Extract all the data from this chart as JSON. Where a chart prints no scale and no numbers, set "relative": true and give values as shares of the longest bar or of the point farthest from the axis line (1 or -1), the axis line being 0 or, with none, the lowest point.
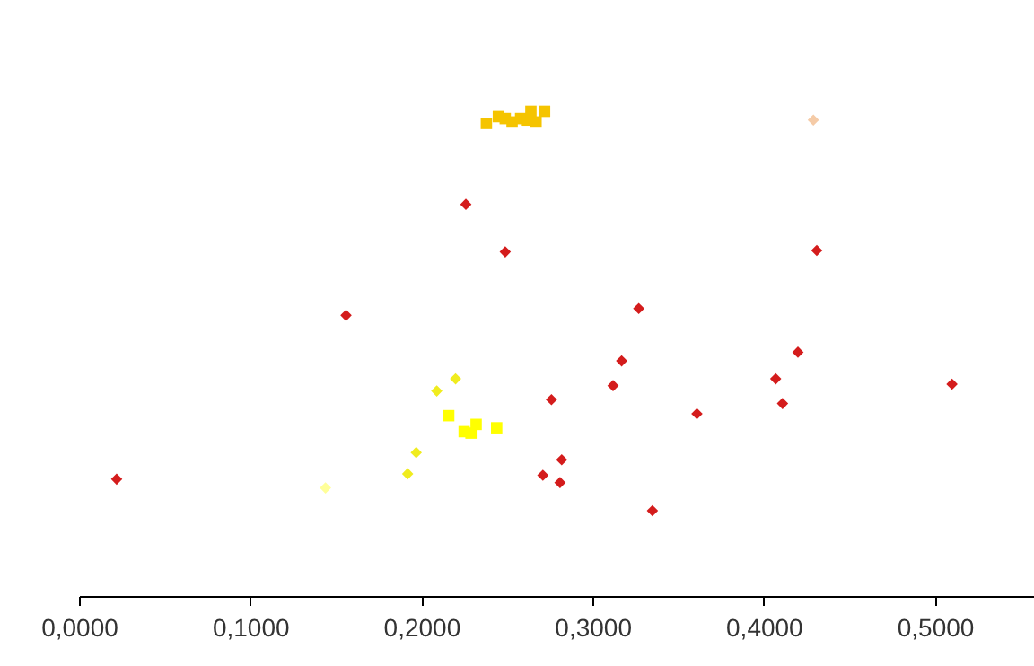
{
  "chart_data": {
    "type": "scatter",
    "relative": true,
    "grid": false,
    "tick_labels": "x",
    "xlim": [
      0,
      0.56
    ],
    "xticks": [
      {
        "value": 0,
        "label": "0,0000"
      },
      {
        "value": 0.1,
        "label": "0,1000"
      },
      {
        "value": 0.2,
        "label": "0,2000"
      },
      {
        "value": 0.3,
        "label": "0,3000"
      },
      {
        "value": 0.4,
        "label": "0,4000"
      },
      {
        "value": 0.5,
        "label": "0,5000"
      }
    ],
    "series": [
      {
        "color": "#d41c1c",
        "marker": "diamond",
        "x": [
          0.022,
          0.156,
          0.226,
          0.249,
          0.327,
          0.431,
          0.317,
          0.312,
          0.276,
          0.282,
          0.271,
          0.281,
          0.335,
          0.361,
          0.407,
          0.42,
          0.411,
          0.51
        ],
        "values": [
          0.241,
          0.579,
          0.808,
          0.71,
          0.593,
          0.713,
          0.485,
          0.434,
          0.405,
          0.281,
          0.249,
          0.234,
          0.176,
          0.376,
          0.448,
          0.503,
          0.397,
          0.437
        ]
      },
      {
        "color": "#f5c400",
        "marker": "square",
        "x": [
          0.238,
          0.245,
          0.249,
          0.253,
          0.258,
          0.262,
          0.264,
          0.267,
          0.272
        ],
        "values": [
          0.975,
          0.989,
          0.985,
          0.978,
          0.985,
          0.982,
          1.0,
          0.978,
          1.0
        ]
      },
      {
        "color": "#f5cba7",
        "marker": "diamond",
        "x": [
          0.429
        ],
        "values": [
          0.982
        ]
      },
      {
        "color": "#ffff00",
        "marker": "square",
        "x": [
          0.216,
          0.225,
          0.229,
          0.232,
          0.244
        ],
        "values": [
          0.372,
          0.339,
          0.336,
          0.354,
          0.347
        ]
      },
      {
        "color": "#f0ec1e",
        "marker": "diamond",
        "x": [
          0.209,
          0.22,
          0.197,
          0.192
        ],
        "values": [
          0.423,
          0.448,
          0.296,
          0.252
        ]
      },
      {
        "color": "#ffff99",
        "marker": "diamond",
        "x": [
          0.144
        ],
        "values": [
          0.223
        ]
      }
    ]
  }
}
